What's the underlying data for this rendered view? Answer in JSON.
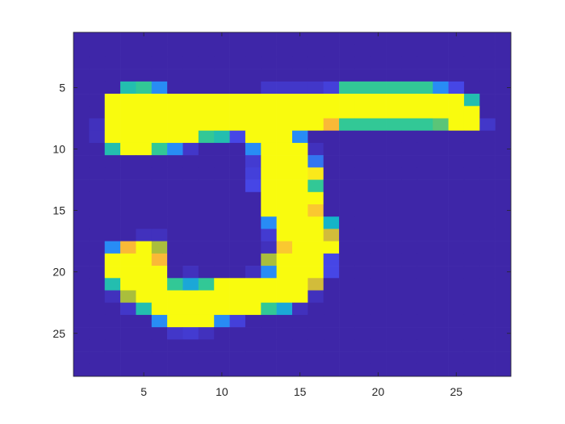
{
  "chart_data": {
    "type": "heatmap",
    "title": "",
    "xlabel": "",
    "ylabel": "",
    "xlim": [
      0.5,
      28.5
    ],
    "ylim": [
      0.5,
      28.5
    ],
    "y_reversed": true,
    "grid": false,
    "colormap": "parula",
    "clim": [
      0,
      1
    ],
    "x_ticks": [
      5,
      10,
      15,
      20,
      25
    ],
    "y_ticks": [
      5,
      10,
      15,
      20,
      25
    ],
    "x_tick_labels": [
      "5",
      "10",
      "15",
      "20",
      "25"
    ],
    "y_tick_labels": [
      "5",
      "10",
      "15",
      "20",
      "25"
    ],
    "colors": {
      "background": "#3e26a8",
      "axis_line": "#262626",
      "tick_label": "#262626"
    },
    "values": [
      [
        0,
        0,
        0,
        0,
        0,
        0,
        0,
        0,
        0,
        0,
        0,
        0,
        0,
        0,
        0,
        0,
        0,
        0,
        0,
        0,
        0,
        0,
        0,
        0,
        0,
        0,
        0,
        0
      ],
      [
        0,
        0,
        0,
        0,
        0,
        0,
        0,
        0,
        0,
        0,
        0,
        0,
        0,
        0,
        0,
        0,
        0,
        0,
        0,
        0,
        0,
        0,
        0,
        0,
        0,
        0,
        0,
        0
      ],
      [
        0,
        0,
        0,
        0,
        0,
        0,
        0,
        0,
        0,
        0,
        0,
        0,
        0,
        0,
        0,
        0,
        0,
        0,
        0,
        0,
        0,
        0,
        0,
        0,
        0,
        0,
        0,
        0
      ],
      [
        0,
        0,
        0,
        0,
        0,
        0,
        0,
        0,
        0,
        0,
        0,
        0,
        0,
        0,
        0,
        0,
        0,
        0,
        0,
        0,
        0,
        0,
        0,
        0,
        0,
        0,
        0,
        0
      ],
      [
        0,
        0,
        0,
        0.5,
        0.55,
        0.3,
        0,
        0,
        0,
        0,
        0,
        0,
        0.08,
        0.08,
        0.08,
        0.08,
        0.12,
        0.55,
        0.55,
        0.55,
        0.55,
        0.55,
        0.55,
        0.3,
        0.15,
        0,
        0,
        0
      ],
      [
        0,
        0,
        1,
        1,
        1,
        1,
        1,
        1,
        1,
        1,
        1,
        1,
        1,
        1,
        1,
        1,
        1,
        1,
        1,
        1,
        1,
        1,
        1,
        1,
        1,
        0.5,
        0,
        0
      ],
      [
        0,
        0,
        1,
        1,
        1,
        1,
        1,
        1,
        1,
        1,
        1,
        1,
        1,
        1,
        1,
        1,
        1,
        1,
        1,
        1,
        1,
        1,
        1,
        1,
        1,
        1,
        0,
        0
      ],
      [
        0,
        0.05,
        1,
        1,
        1,
        1,
        1,
        1,
        1,
        1,
        1,
        1,
        1,
        1,
        1,
        1,
        0.8,
        0.55,
        0.55,
        0.55,
        0.55,
        0.55,
        0.55,
        0.6,
        1,
        1,
        0.08,
        0
      ],
      [
        0,
        0.05,
        1,
        1,
        1,
        1,
        1,
        1,
        0.55,
        0.5,
        0.15,
        1,
        1,
        1,
        0.3,
        0,
        0,
        0,
        0,
        0,
        0,
        0,
        0,
        0,
        0,
        0,
        0,
        0
      ],
      [
        0,
        0,
        0.5,
        1,
        1,
        0.55,
        0.3,
        0.08,
        0,
        0,
        0,
        0.3,
        1,
        1,
        1,
        0.05,
        0,
        0,
        0,
        0,
        0,
        0,
        0,
        0,
        0,
        0,
        0,
        0
      ],
      [
        0,
        0,
        0,
        0,
        0,
        0,
        0,
        0,
        0,
        0,
        0,
        0.1,
        1,
        1,
        1,
        0.25,
        0,
        0,
        0,
        0,
        0,
        0,
        0,
        0,
        0,
        0,
        0,
        0
      ],
      [
        0,
        0,
        0,
        0,
        0,
        0,
        0,
        0,
        0,
        0,
        0,
        0.12,
        1,
        1,
        1,
        0.95,
        0,
        0,
        0,
        0,
        0,
        0,
        0,
        0,
        0,
        0,
        0,
        0
      ],
      [
        0,
        0,
        0,
        0,
        0,
        0,
        0,
        0,
        0,
        0,
        0,
        0.15,
        1,
        1,
        1,
        0.55,
        0,
        0,
        0,
        0,
        0,
        0,
        0,
        0,
        0,
        0,
        0,
        0
      ],
      [
        0,
        0,
        0,
        0,
        0,
        0,
        0,
        0,
        0,
        0,
        0,
        0,
        1,
        1,
        1,
        1,
        0,
        0,
        0,
        0,
        0,
        0,
        0,
        0,
        0,
        0,
        0,
        0
      ],
      [
        0,
        0,
        0,
        0,
        0,
        0,
        0,
        0,
        0,
        0,
        0,
        0,
        1,
        1,
        1,
        0.85,
        0,
        0,
        0,
        0,
        0,
        0,
        0,
        0,
        0,
        0,
        0,
        0
      ],
      [
        0,
        0,
        0,
        0,
        0,
        0,
        0,
        0,
        0,
        0,
        0,
        0,
        0.3,
        1,
        1,
        1,
        0.45,
        0,
        0,
        0,
        0,
        0,
        0,
        0,
        0,
        0,
        0,
        0
      ],
      [
        0,
        0,
        0,
        0,
        0.05,
        0.05,
        0,
        0,
        0,
        0,
        0,
        0,
        0.1,
        1,
        1,
        1,
        0.75,
        0,
        0,
        0,
        0,
        0,
        0,
        0,
        0,
        0,
        0,
        0
      ],
      [
        0,
        0,
        0.3,
        0.8,
        1,
        0.7,
        0,
        0,
        0,
        0,
        0,
        0,
        0.05,
        0.85,
        1,
        1,
        1,
        0,
        0,
        0,
        0,
        0,
        0,
        0,
        0,
        0,
        0,
        0
      ],
      [
        0,
        0,
        1,
        1,
        1,
        0.8,
        0,
        0,
        0,
        0,
        0,
        0,
        0.7,
        1,
        1,
        1,
        0.15,
        0,
        0,
        0,
        0,
        0,
        0,
        0,
        0,
        0,
        0,
        0
      ],
      [
        0,
        0,
        1,
        1,
        1,
        1,
        0,
        0.05,
        0,
        0,
        0,
        0.05,
        0.3,
        1,
        1,
        1,
        0.15,
        0,
        0,
        0,
        0,
        0,
        0,
        0,
        0,
        0,
        0,
        0
      ],
      [
        0,
        0,
        0.5,
        1,
        1,
        1,
        0.55,
        0.4,
        0.55,
        1,
        1,
        1,
        1,
        1,
        1,
        0.75,
        0,
        0,
        0,
        0,
        0,
        0,
        0,
        0,
        0,
        0,
        0,
        0
      ],
      [
        0,
        0,
        0.05,
        0.7,
        1,
        1,
        1,
        1,
        1,
        1,
        1,
        1,
        1,
        1,
        1,
        0.05,
        0,
        0,
        0,
        0,
        0,
        0,
        0,
        0,
        0,
        0,
        0,
        0
      ],
      [
        0,
        0,
        0,
        0.08,
        0.5,
        1,
        1,
        1,
        1,
        1,
        1,
        1,
        0.55,
        0.4,
        0.05,
        0,
        0,
        0,
        0,
        0,
        0,
        0,
        0,
        0,
        0,
        0,
        0,
        0
      ],
      [
        0,
        0,
        0,
        0,
        0,
        0.3,
        1,
        1,
        1,
        0.3,
        0.12,
        0,
        0,
        0,
        0,
        0,
        0,
        0,
        0,
        0,
        0,
        0,
        0,
        0,
        0,
        0,
        0,
        0
      ],
      [
        0,
        0,
        0,
        0,
        0,
        0,
        0.08,
        0.1,
        0.05,
        0,
        0,
        0,
        0,
        0,
        0,
        0,
        0,
        0,
        0,
        0,
        0,
        0,
        0,
        0,
        0,
        0,
        0,
        0
      ],
      [
        0,
        0,
        0,
        0,
        0,
        0,
        0,
        0,
        0,
        0,
        0,
        0,
        0,
        0,
        0,
        0,
        0,
        0,
        0,
        0,
        0,
        0,
        0,
        0,
        0,
        0,
        0,
        0
      ],
      [
        0,
        0,
        0,
        0,
        0,
        0,
        0,
        0,
        0,
        0,
        0,
        0,
        0,
        0,
        0,
        0,
        0,
        0,
        0,
        0,
        0,
        0,
        0,
        0,
        0,
        0,
        0,
        0
      ],
      [
        0,
        0,
        0,
        0,
        0,
        0,
        0,
        0,
        0,
        0,
        0,
        0,
        0,
        0,
        0,
        0,
        0,
        0,
        0,
        0,
        0,
        0,
        0,
        0,
        0,
        0,
        0,
        0
      ]
    ]
  }
}
